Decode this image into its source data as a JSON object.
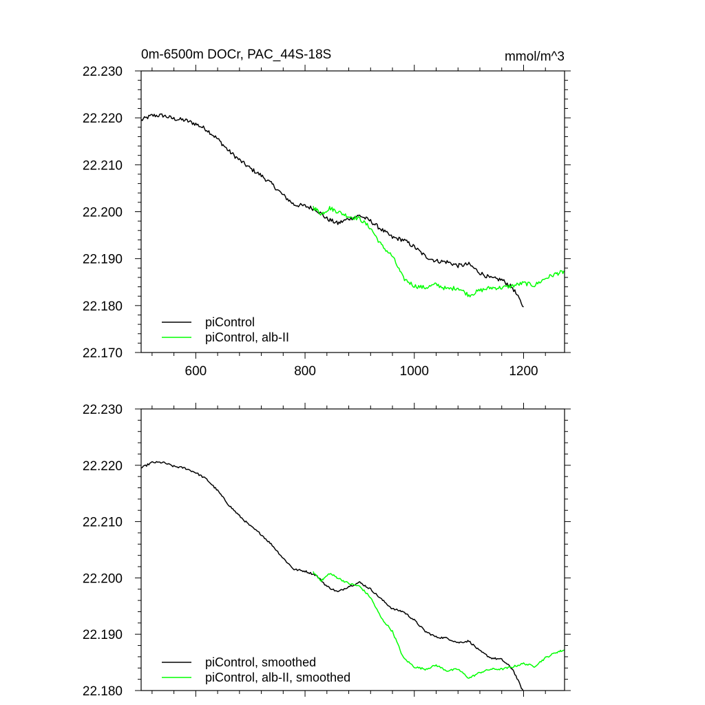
{
  "chart_data": [
    {
      "type": "line",
      "title": "0m-6500m DOCr, PAC_44S-18S",
      "units": "mmol/m^3",
      "xlim": [
        500,
        1275
      ],
      "ylim": [
        22.17,
        22.23
      ],
      "x_ticks": [
        600,
        800,
        1000,
        1200
      ],
      "y_ticks": [
        22.17,
        22.18,
        22.19,
        22.2,
        22.21,
        22.22,
        22.23
      ],
      "y_tick_labels": [
        "22.170",
        "22.180",
        "22.190",
        "22.200",
        "22.210",
        "22.220",
        "22.230"
      ],
      "x_tick_labels": [
        "600",
        "800",
        "1000",
        "1200"
      ],
      "grid": false,
      "legend_position": "bottom-left",
      "series": [
        {
          "name": "piControl",
          "color": "#000000",
          "x": [
            500,
            520,
            540,
            560,
            580,
            600,
            620,
            640,
            660,
            680,
            700,
            720,
            740,
            760,
            780,
            800,
            820,
            840,
            860,
            880,
            900,
            920,
            940,
            960,
            980,
            1000,
            1020,
            1040,
            1060,
            1080,
            1100,
            1120,
            1140,
            1160,
            1180,
            1200
          ],
          "y": [
            22.2195,
            22.2205,
            22.2205,
            22.2198,
            22.2195,
            22.2187,
            22.2175,
            22.2155,
            22.213,
            22.211,
            22.2092,
            22.2077,
            22.2058,
            22.2035,
            22.2015,
            22.2012,
            22.2005,
            22.1985,
            22.1975,
            22.1985,
            22.1992,
            22.198,
            22.1962,
            22.1945,
            22.194,
            22.1925,
            22.1905,
            22.1895,
            22.1893,
            22.1885,
            22.1888,
            22.187,
            22.1858,
            22.1855,
            22.1838,
            22.1797
          ]
        },
        {
          "name": "piControl, alb-II",
          "color": "#00ff00",
          "x": [
            815,
            830,
            845,
            860,
            880,
            900,
            920,
            940,
            960,
            980,
            1000,
            1020,
            1040,
            1060,
            1080,
            1100,
            1120,
            1140,
            1160,
            1180,
            1200,
            1220,
            1240,
            1260,
            1275
          ],
          "y": [
            22.201,
            22.1995,
            22.2008,
            22.2,
            22.199,
            22.1985,
            22.1965,
            22.1928,
            22.1905,
            22.1858,
            22.1842,
            22.1838,
            22.1845,
            22.1835,
            22.1838,
            22.1822,
            22.1832,
            22.1838,
            22.1838,
            22.1842,
            22.1848,
            22.1843,
            22.1858,
            22.1868,
            22.1872
          ]
        }
      ]
    },
    {
      "type": "line",
      "xlim": [
        500,
        1275
      ],
      "ylim": [
        22.18,
        22.23
      ],
      "x_ticks": [
        600,
        800,
        1000,
        1200
      ],
      "y_ticks": [
        22.18,
        22.19,
        22.2,
        22.21,
        22.22,
        22.23
      ],
      "y_tick_labels": [
        "22.180",
        "22.190",
        "22.200",
        "22.210",
        "22.220",
        "22.230"
      ],
      "grid": false,
      "legend_position": "bottom-left",
      "series": [
        {
          "name": "piControl, smoothed",
          "color": "#000000",
          "x": [
            500,
            520,
            540,
            560,
            580,
            600,
            620,
            640,
            660,
            680,
            700,
            720,
            740,
            760,
            780,
            800,
            820,
            840,
            860,
            880,
            900,
            920,
            940,
            960,
            980,
            1000,
            1020,
            1040,
            1060,
            1080,
            1100,
            1120,
            1140,
            1160,
            1180,
            1200
          ],
          "y": [
            22.2195,
            22.2205,
            22.2205,
            22.2198,
            22.2195,
            22.2187,
            22.2175,
            22.2155,
            22.213,
            22.211,
            22.2092,
            22.2077,
            22.2058,
            22.2035,
            22.2015,
            22.2012,
            22.2005,
            22.1985,
            22.1975,
            22.1985,
            22.1992,
            22.198,
            22.1962,
            22.1945,
            22.194,
            22.1925,
            22.1905,
            22.1895,
            22.1893,
            22.1885,
            22.1888,
            22.187,
            22.1858,
            22.1855,
            22.1838,
            22.1797
          ]
        },
        {
          "name": "piControl, alb-II, smoothed",
          "color": "#00ff00",
          "x": [
            815,
            830,
            845,
            860,
            880,
            900,
            920,
            940,
            960,
            980,
            1000,
            1020,
            1040,
            1060,
            1080,
            1100,
            1120,
            1140,
            1160,
            1180,
            1200,
            1220,
            1240,
            1260,
            1275
          ],
          "y": [
            22.201,
            22.1995,
            22.2008,
            22.2,
            22.199,
            22.1985,
            22.1965,
            22.1928,
            22.1905,
            22.1858,
            22.1842,
            22.1838,
            22.1845,
            22.1835,
            22.1838,
            22.1822,
            22.1832,
            22.1838,
            22.1838,
            22.1842,
            22.1848,
            22.1843,
            22.1858,
            22.1868,
            22.1872
          ]
        }
      ]
    }
  ]
}
